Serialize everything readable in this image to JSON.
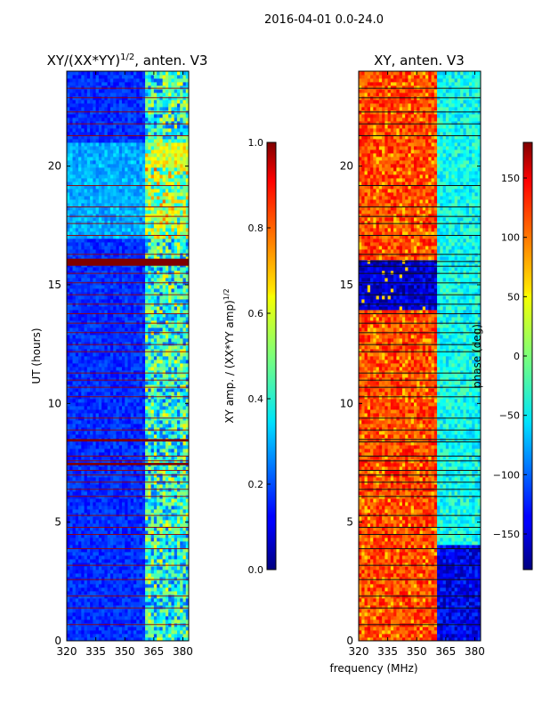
{
  "figure": {
    "suptitle": "2016-04-01 0.0-24.0",
    "xlabel": "frequency (MHz)"
  },
  "chart_data": [
    {
      "type": "heatmap",
      "title_main": "XY/(XX*YY)",
      "title_sup": "1/2",
      "title_rest": ", anten. V3",
      "ylabel": "UT (hours)",
      "xlim": [
        320,
        383
      ],
      "ylim": [
        0,
        24
      ],
      "x_ticks": [
        320,
        335,
        350,
        365,
        380
      ],
      "y_ticks": [
        0,
        5,
        10,
        15,
        20
      ],
      "colorbar": {
        "label_main": "XY amp. / (XX*YY amp)",
        "label_sup": "1/2",
        "range": [
          0.0,
          1.0
        ],
        "ticks": [
          "0.0",
          "0.2",
          "0.4",
          "0.6",
          "0.8",
          "1.0"
        ],
        "tick_values": [
          0.0,
          0.2,
          0.4,
          0.6,
          0.8,
          1.0
        ]
      },
      "bright_band_hours": [
        15.8,
        16.1,
        8.4,
        8.5,
        7.4,
        7.5
      ]
    },
    {
      "type": "heatmap",
      "title": "XY, anten. V3",
      "ylabel": "",
      "xlim": [
        320,
        383
      ],
      "ylim": [
        0,
        24
      ],
      "x_ticks": [
        320,
        335,
        350,
        365,
        380
      ],
      "y_ticks": [
        0,
        5,
        10,
        15,
        20
      ],
      "colorbar": {
        "label": "phase (deg)",
        "range": [
          -180,
          180
        ],
        "ticks": [
          "150",
          "100",
          "50",
          "0",
          "−50",
          "−100",
          "−150"
        ],
        "tick_values": [
          150,
          100,
          50,
          0,
          -50,
          -100,
          -150
        ]
      },
      "phase_regions": [
        {
          "ut_from": 0,
          "ut_to": 24,
          "f_from": 320,
          "f_to": 360,
          "phase_deg": 110
        },
        {
          "ut_from": 0,
          "ut_to": 4,
          "f_from": 360,
          "f_to": 383,
          "phase_deg": -140
        },
        {
          "ut_from": 4,
          "ut_to": 24,
          "f_from": 360,
          "f_to": 383,
          "phase_deg": -40
        },
        {
          "ut_from": 14,
          "ut_to": 16,
          "f_from": 320,
          "f_to": 360,
          "phase_deg": -150
        }
      ]
    }
  ]
}
